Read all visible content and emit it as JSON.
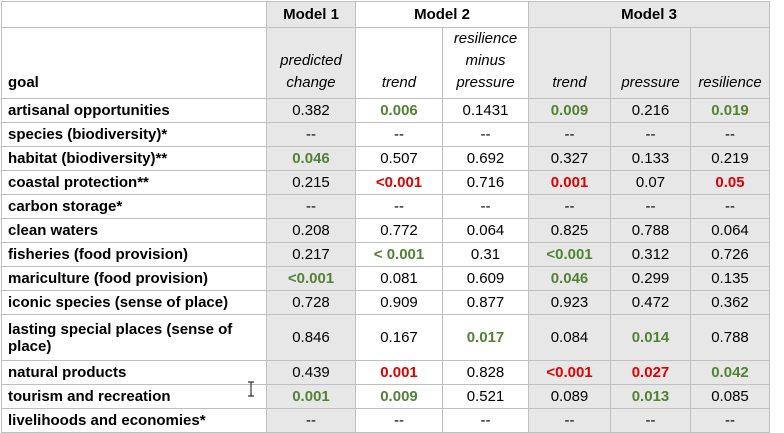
{
  "header": {
    "model1": "Model 1",
    "model2": "Model 2",
    "model3": "Model 3",
    "goal": "goal",
    "sub": [
      "predicted change",
      "trend",
      "resilience minus pressure",
      "trend",
      "pressure",
      "resilience"
    ]
  },
  "rows": [
    {
      "goal": "artisanal opportunities",
      "cells": [
        {
          "v": "0.382"
        },
        {
          "v": "0.006",
          "c": "g"
        },
        {
          "v": "0.1431"
        },
        {
          "v": "0.009",
          "c": "g"
        },
        {
          "v": "0.216"
        },
        {
          "v": "0.019",
          "c": "g"
        }
      ]
    },
    {
      "goal": "species (biodiversity)*",
      "cells": [
        {
          "v": "--"
        },
        {
          "v": "--"
        },
        {
          "v": "--"
        },
        {
          "v": "--"
        },
        {
          "v": "--"
        },
        {
          "v": "--"
        }
      ]
    },
    {
      "goal": "habitat (biodiversity)**",
      "cells": [
        {
          "v": "0.046",
          "c": "g"
        },
        {
          "v": "0.507"
        },
        {
          "v": "0.692"
        },
        {
          "v": "0.327"
        },
        {
          "v": "0.133"
        },
        {
          "v": "0.219"
        }
      ]
    },
    {
      "goal": "coastal protection**",
      "cells": [
        {
          "v": "0.215"
        },
        {
          "v": "<0.001",
          "c": "r"
        },
        {
          "v": "0.716"
        },
        {
          "v": "0.001",
          "c": "r"
        },
        {
          "v": "0.07"
        },
        {
          "v": "0.05",
          "c": "r"
        }
      ]
    },
    {
      "goal": "carbon storage*",
      "cells": [
        {
          "v": "--"
        },
        {
          "v": "--"
        },
        {
          "v": "--"
        },
        {
          "v": "--"
        },
        {
          "v": "--"
        },
        {
          "v": "--"
        }
      ]
    },
    {
      "goal": "clean waters",
      "cells": [
        {
          "v": "0.208"
        },
        {
          "v": "0.772"
        },
        {
          "v": "0.064"
        },
        {
          "v": "0.825"
        },
        {
          "v": "0.788"
        },
        {
          "v": "0.064"
        }
      ]
    },
    {
      "goal": "fisheries (food provision)",
      "cells": [
        {
          "v": "0.217"
        },
        {
          "v": "< 0.001",
          "c": "g"
        },
        {
          "v": "0.31"
        },
        {
          "v": "<0.001",
          "c": "g"
        },
        {
          "v": "0.312"
        },
        {
          "v": "0.726"
        }
      ]
    },
    {
      "goal": "mariculture (food provision)",
      "cells": [
        {
          "v": "<0.001",
          "c": "g"
        },
        {
          "v": "0.081"
        },
        {
          "v": "0.609"
        },
        {
          "v": "0.046",
          "c": "g"
        },
        {
          "v": "0.299"
        },
        {
          "v": "0.135"
        }
      ]
    },
    {
      "goal": "iconic species (sense of place)",
      "cells": [
        {
          "v": "0.728"
        },
        {
          "v": "0.909"
        },
        {
          "v": "0.877"
        },
        {
          "v": "0.923"
        },
        {
          "v": "0.472"
        },
        {
          "v": "0.362"
        }
      ]
    },
    {
      "goal": "lasting special places (sense of place)",
      "tall": true,
      "cells": [
        {
          "v": "0.846"
        },
        {
          "v": "0.167"
        },
        {
          "v": "0.017",
          "c": "g"
        },
        {
          "v": "0.084"
        },
        {
          "v": "0.014",
          "c": "g"
        },
        {
          "v": "0.788"
        }
      ]
    },
    {
      "goal": "natural products",
      "cells": [
        {
          "v": "0.439"
        },
        {
          "v": "0.001",
          "c": "r"
        },
        {
          "v": "0.828"
        },
        {
          "v": "<0.001",
          "c": "r"
        },
        {
          "v": "0.027",
          "c": "r"
        },
        {
          "v": "0.042",
          "c": "g"
        }
      ]
    },
    {
      "goal": "tourism and recreation",
      "cells": [
        {
          "v": "0.001",
          "c": "g"
        },
        {
          "v": "0.009",
          "c": "g"
        },
        {
          "v": "0.521"
        },
        {
          "v": "0.089"
        },
        {
          "v": "0.013",
          "c": "g"
        },
        {
          "v": "0.085"
        }
      ]
    },
    {
      "goal": "livelihoods and economies*",
      "cells": [
        {
          "v": "--"
        },
        {
          "v": "--"
        },
        {
          "v": "--"
        },
        {
          "v": "--"
        },
        {
          "v": "--"
        },
        {
          "v": "--"
        }
      ]
    }
  ]
}
